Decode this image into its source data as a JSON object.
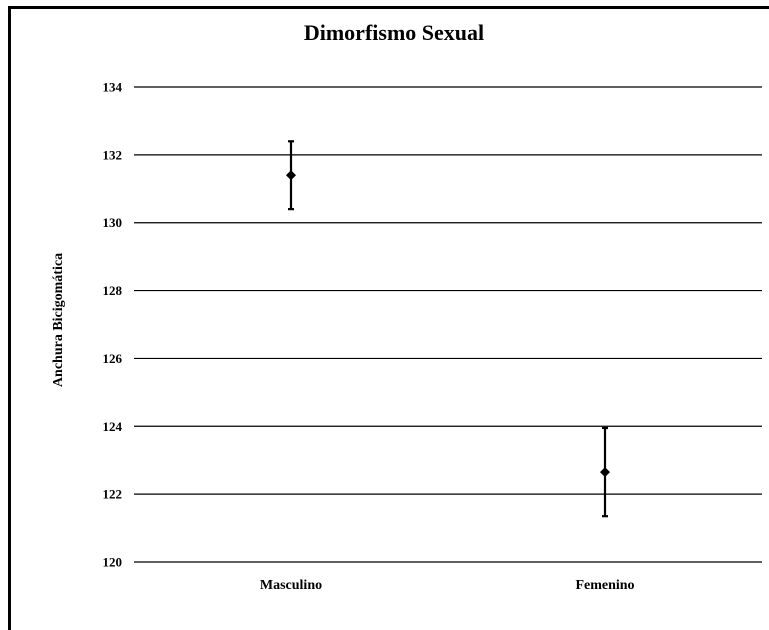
{
  "chart_data": {
    "type": "scatter",
    "title": "Dimorfismo Sexual",
    "xlabel": "",
    "ylabel": "Anchura  Bicigomática",
    "categories": [
      "Masculino",
      "Femenino"
    ],
    "series": [
      {
        "values": [
          131.4,
          122.65
        ],
        "error_low": [
          130.4,
          121.35
        ],
        "error_high": [
          132.4,
          123.95
        ]
      }
    ],
    "ylim": [
      120,
      134
    ],
    "yticks": [
      120,
      122,
      124,
      126,
      128,
      130,
      132,
      134
    ],
    "grid": true,
    "marker": "diamond",
    "color": "#000000"
  }
}
